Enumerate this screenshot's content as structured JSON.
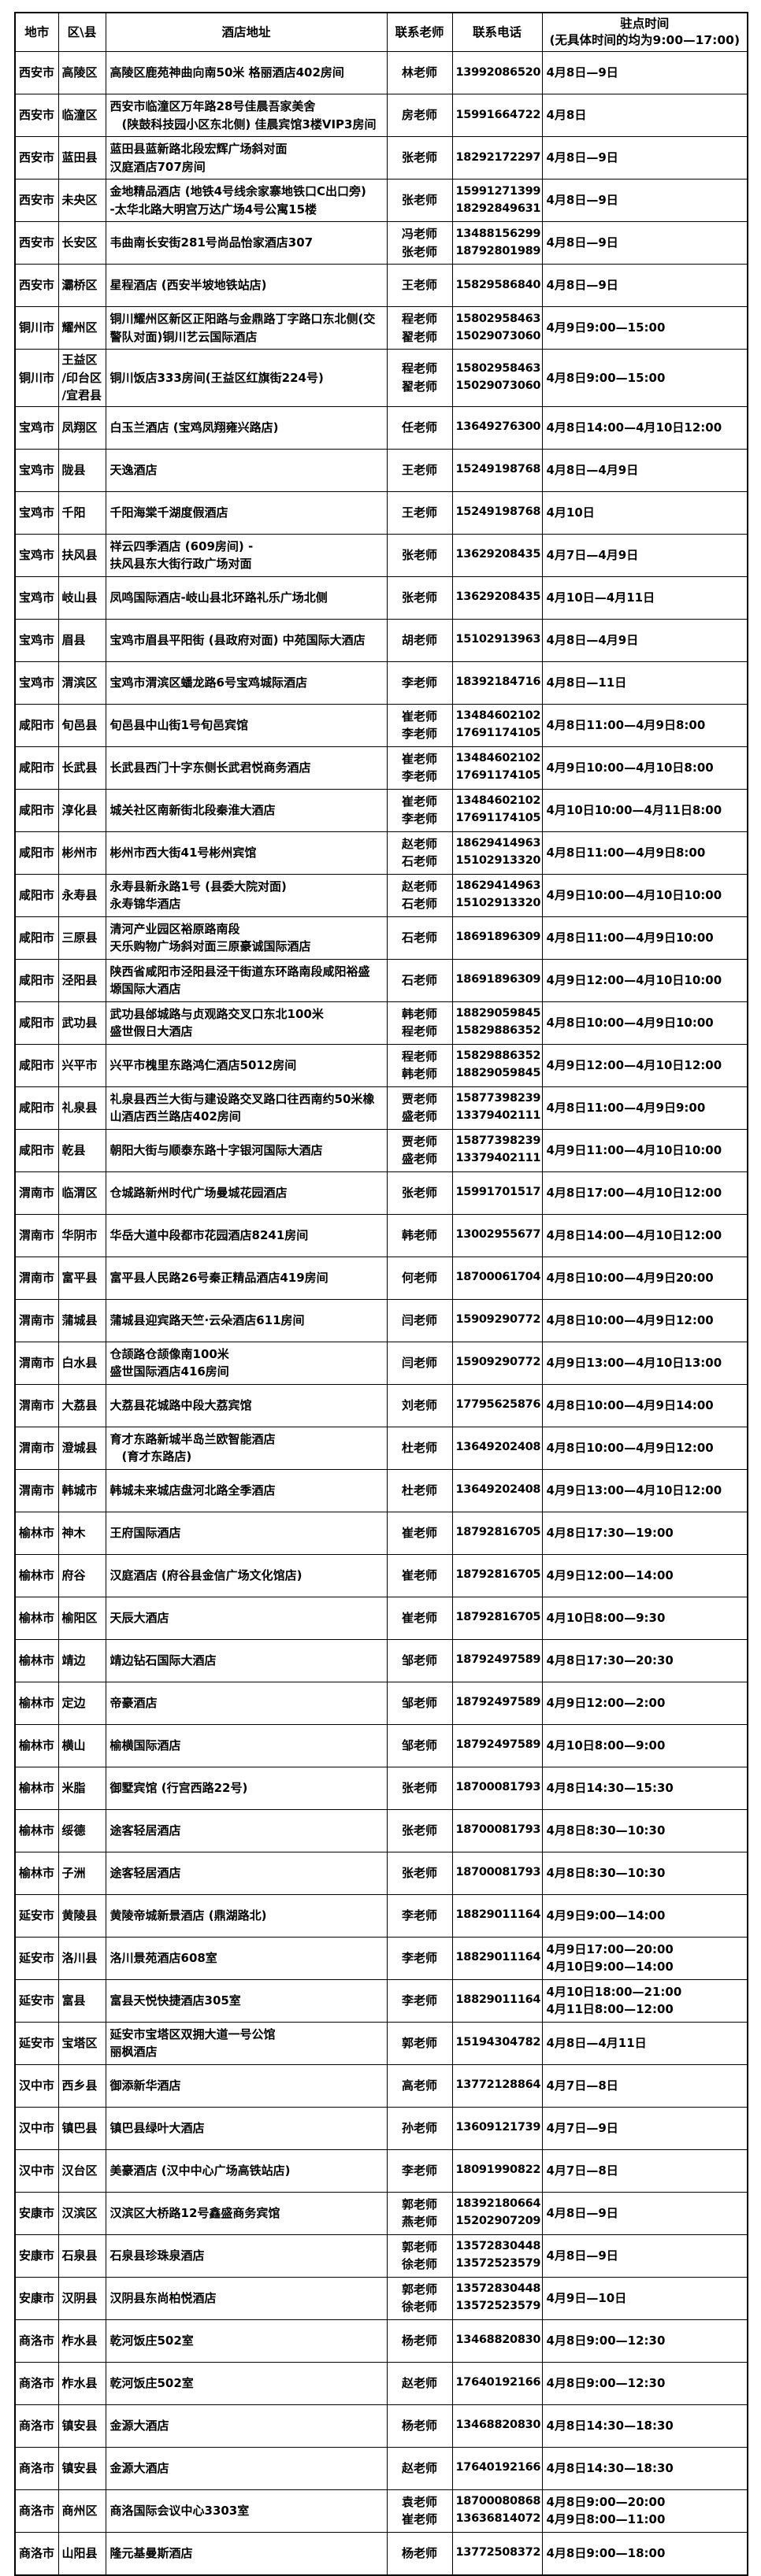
{
  "table": {
    "columns": [
      "地市",
      "区\\县",
      "酒店地址",
      "联系老师",
      "联系电话",
      [
        "驻点时间",
        "(无具体时间的均为9:00—17:00)"
      ]
    ],
    "rows": [
      {
        "city": "西安市",
        "district": "高陵区",
        "address": "高陵区鹿苑神曲向南50米 格丽酒店402房间",
        "teachers": [
          "林老师"
        ],
        "phones": [
          "13992086520"
        ],
        "times": [
          "4月8日—9日"
        ]
      },
      {
        "city": "西安市",
        "district": "临潼区",
        "address": [
          "西安市临潼区万年路28号佳晨吾家美舍",
          "　(陕鼓科技园小区东北侧) 佳晨宾馆3楼VIP3房间"
        ],
        "teachers": [
          "房老师"
        ],
        "phones": [
          "15991664722"
        ],
        "times": [
          "4月8日"
        ]
      },
      {
        "city": "西安市",
        "district": "蓝田县",
        "address": [
          "蓝田县蓝新路北段宏辉广场斜对面",
          "汉庭酒店707房间"
        ],
        "teachers": [
          "张老师"
        ],
        "phones": [
          "18292172297"
        ],
        "times": [
          "4月8日—9日"
        ]
      },
      {
        "city": "西安市",
        "district": "未央区",
        "address": [
          "金地精品酒店 (地铁4号线余家寨地铁口C出口旁)",
          "-太华北路大明宫万达广场4号公寓15楼"
        ],
        "teachers": [
          "张老师"
        ],
        "phones": [
          "15991271399",
          "18292849631"
        ],
        "times": [
          "4月8日—9日"
        ]
      },
      {
        "city": "西安市",
        "district": "长安区",
        "address": "韦曲南长安街281号尚品怡家酒店307",
        "teachers": [
          "冯老师",
          "张老师"
        ],
        "phones": [
          "13488156299",
          "18792801989"
        ],
        "times": [
          "4月8日—9日"
        ]
      },
      {
        "city": "西安市",
        "district": "灞桥区",
        "address": "星程酒店 (西安半坡地铁站店)",
        "teachers": [
          "王老师"
        ],
        "phones": [
          "15829586840"
        ],
        "times": [
          "4月8日—9日"
        ]
      },
      {
        "city": "铜川市",
        "district": "耀州区",
        "address": [
          "铜川耀州区新区正阳路与金鼎路丁字路口东北侧(交",
          "警队对面)铜川艺云国际酒店"
        ],
        "teachers": [
          "程老师",
          "翟老师"
        ],
        "phones": [
          "15802958463",
          "15029073060"
        ],
        "times": [
          "4月9日9:00—15:00"
        ]
      },
      {
        "city": "铜川市",
        "district": [
          "王益区",
          "/印台区",
          "/宜君县"
        ],
        "address": "铜川饭店333房间(王益区红旗街224号)",
        "teachers": [
          "程老师",
          "翟老师"
        ],
        "phones": [
          "15802958463",
          "15029073060"
        ],
        "times": [
          "4月8日9:00—15:00"
        ]
      },
      {
        "city": "宝鸡市",
        "district": "凤翔区",
        "address": "白玉兰酒店 (宝鸡凤翔雍兴路店)",
        "teachers": [
          "任老师"
        ],
        "phones": [
          "13649276300"
        ],
        "times": [
          "4月8日14:00—4月10日12:00"
        ]
      },
      {
        "city": "宝鸡市",
        "district": "陇县",
        "address": "天逸酒店",
        "teachers": [
          "王老师"
        ],
        "phones": [
          "15249198768"
        ],
        "times": [
          "4月8日—4月9日"
        ]
      },
      {
        "city": "宝鸡市",
        "district": "千阳",
        "address": "千阳海棠千湖度假酒店",
        "teachers": [
          "王老师"
        ],
        "phones": [
          "15249198768"
        ],
        "times": [
          "4月10日"
        ]
      },
      {
        "city": "宝鸡市",
        "district": "扶风县",
        "address": [
          "祥云四季酒店 (609房间) -",
          "扶风县东大街行政广场对面"
        ],
        "teachers": [
          "张老师"
        ],
        "phones": [
          "13629208435"
        ],
        "times": [
          "4月7日—4月9日"
        ]
      },
      {
        "city": "宝鸡市",
        "district": "岐山县",
        "address": "凤鸣国际酒店-岐山县北环路礼乐广场北侧",
        "teachers": [
          "张老师"
        ],
        "phones": [
          "13629208435"
        ],
        "times": [
          "4月10日—4月11日"
        ]
      },
      {
        "city": "宝鸡市",
        "district": "眉县",
        "address": "宝鸡市眉县平阳街 (县政府对面) 中苑国际大酒店",
        "teachers": [
          "胡老师"
        ],
        "phones": [
          "15102913963"
        ],
        "times": [
          "4月8日—4月9日"
        ]
      },
      {
        "city": "宝鸡市",
        "district": "渭滨区",
        "address": "宝鸡市渭滨区蟠龙路6号宝鸡城际酒店",
        "teachers": [
          "李老师"
        ],
        "phones": [
          "18392184716"
        ],
        "times": [
          "4月8日—11日"
        ]
      },
      {
        "city": "咸阳市",
        "district": "旬邑县",
        "address": "旬邑县中山街1号旬邑宾馆",
        "teachers": [
          "崔老师",
          "李老师"
        ],
        "phones": [
          "13484602102",
          "17691174105"
        ],
        "times": [
          "4月8日11:00—4月9日8:00"
        ]
      },
      {
        "city": "咸阳市",
        "district": "长武县",
        "address": "长武县西门十字东侧长武君悦商务酒店",
        "teachers": [
          "崔老师",
          "李老师"
        ],
        "phones": [
          "13484602102",
          "17691174105"
        ],
        "times": [
          "4月9日10:00—4月10日8:00"
        ]
      },
      {
        "city": "咸阳市",
        "district": "淳化县",
        "address": "城关社区南新街北段秦淮大酒店",
        "teachers": [
          "崔老师",
          "李老师"
        ],
        "phones": [
          "13484602102",
          "17691174105"
        ],
        "times": [
          "4月10日10:00—4月11日8:00"
        ]
      },
      {
        "city": "咸阳市",
        "district": "彬州市",
        "address": "彬州市西大街41号彬州宾馆",
        "teachers": [
          "赵老师",
          "石老师"
        ],
        "phones": [
          "18629414963",
          "15102913320"
        ],
        "times": [
          "4月8日11:00—4月9日8:00"
        ]
      },
      {
        "city": "咸阳市",
        "district": "永寿县",
        "address": [
          "永寿县新永路1号 (县委大院对面)",
          "永寿锦华酒店"
        ],
        "teachers": [
          "赵老师",
          "石老师"
        ],
        "phones": [
          "18629414963",
          "15102913320"
        ],
        "times": [
          "4月9日10:00—4月10日10:00"
        ]
      },
      {
        "city": "咸阳市",
        "district": "三原县",
        "address": [
          "清河产业园区裕原路南段",
          "天乐购物广场斜对面三原豪诚国际酒店"
        ],
        "teachers": [
          "石老师"
        ],
        "phones": [
          "18691896309"
        ],
        "times": [
          "4月8日11:00—4月9日10:00"
        ]
      },
      {
        "city": "咸阳市",
        "district": "泾阳县",
        "address": [
          "陕西省咸阳市泾阳县泾干街道东环路南段咸阳裕盛",
          "塬国际大酒店"
        ],
        "teachers": [
          "石老师"
        ],
        "phones": [
          "18691896309"
        ],
        "times": [
          "4月9日12:00—4月10日10:00"
        ]
      },
      {
        "city": "咸阳市",
        "district": "武功县",
        "address": [
          "武功县邰城路与贞观路交叉口东北100米",
          "盛世假日大酒店"
        ],
        "teachers": [
          "韩老师",
          "程老师"
        ],
        "phones": [
          "18829059845",
          "15829886352"
        ],
        "times": [
          "4月8日10:00—4月9日10:00"
        ]
      },
      {
        "city": "咸阳市",
        "district": "兴平市",
        "address": "兴平市槐里东路鸿仁酒店5012房间",
        "teachers": [
          "程老师",
          "韩老师"
        ],
        "phones": [
          "15829886352",
          "18829059845"
        ],
        "times": [
          "4月9日12:00—4月10日12:00"
        ]
      },
      {
        "city": "咸阳市",
        "district": "礼泉县",
        "address": [
          "礼泉县西兰大街与建设路交叉路口往西南约50米橡",
          "山酒店西兰路店402房间"
        ],
        "teachers": [
          "贾老师",
          "盛老师"
        ],
        "phones": [
          "15877398239",
          "13379402111"
        ],
        "times": [
          "4月8日11:00—4月9日9:00"
        ]
      },
      {
        "city": "咸阳市",
        "district": "乾县",
        "address": "朝阳大街与顺泰东路十字银河国际大酒店",
        "teachers": [
          "贾老师",
          "盛老师"
        ],
        "phones": [
          "15877398239",
          "13379402111"
        ],
        "times": [
          "4月9日11:00—4月10日10:00"
        ]
      },
      {
        "city": "渭南市",
        "district": "临渭区",
        "address": "仓城路新州时代广场曼城花园酒店",
        "teachers": [
          "张老师"
        ],
        "phones": [
          "15991701517"
        ],
        "times": [
          "4月8日17:00—4月10日12:00"
        ]
      },
      {
        "city": "渭南市",
        "district": "华阴市",
        "address": "华岳大道中段都市花园酒店8241房间",
        "teachers": [
          "韩老师"
        ],
        "phones": [
          "13002955677"
        ],
        "times": [
          "4月8日14:00—4月10日12:00"
        ]
      },
      {
        "city": "渭南市",
        "district": "富平县",
        "address": "富平县人民路26号秦正精品酒店419房间",
        "teachers": [
          "何老师"
        ],
        "phones": [
          "18700061704"
        ],
        "times": [
          "4月8日10:00—4月9日20:00"
        ]
      },
      {
        "city": "渭南市",
        "district": "蒲城县",
        "address": "蒲城县迎宾路天竺·云朵酒店611房间",
        "teachers": [
          "闫老师"
        ],
        "phones": [
          "15909290772"
        ],
        "times": [
          "4月8日10:00—4月9日12:00"
        ]
      },
      {
        "city": "渭南市",
        "district": "白水县",
        "address": [
          "仓颉路仓颉像南100米",
          "盛世国际酒店416房间"
        ],
        "teachers": [
          "闫老师"
        ],
        "phones": [
          "15909290772"
        ],
        "times": [
          "4月9日13:00—4月10日13:00"
        ]
      },
      {
        "city": "渭南市",
        "district": "大荔县",
        "address": "大荔县花城路中段大荔宾馆",
        "teachers": [
          "刘老师"
        ],
        "phones": [
          "17795625876"
        ],
        "times": [
          "4月8日10:00—4月9日14:00"
        ]
      },
      {
        "city": "渭南市",
        "district": "澄城县",
        "address": [
          "育才东路新城半岛兰欧智能酒店",
          "　(育才东路店)"
        ],
        "teachers": [
          "杜老师"
        ],
        "phones": [
          "13649202408"
        ],
        "times": [
          "4月8日10:00—4月9日12:00"
        ]
      },
      {
        "city": "渭南市",
        "district": "韩城市",
        "address": "韩城未来城店盘河北路全季酒店",
        "teachers": [
          "杜老师"
        ],
        "phones": [
          "13649202408"
        ],
        "times": [
          "4月9日13:00—4月10日12:00"
        ]
      },
      {
        "city": "榆林市",
        "district": "神木",
        "address": "王府国际酒店",
        "teachers": [
          "崔老师"
        ],
        "phones": [
          "18792816705"
        ],
        "times": [
          "4月8日17:30—19:00"
        ]
      },
      {
        "city": "榆林市",
        "district": "府谷",
        "address": "汉庭酒店 (府谷县金信广场文化馆店)",
        "teachers": [
          "崔老师"
        ],
        "phones": [
          "18792816705"
        ],
        "times": [
          "4月9日12:00—14:00"
        ]
      },
      {
        "city": "榆林市",
        "district": "榆阳区",
        "address": "天辰大酒店",
        "teachers": [
          "崔老师"
        ],
        "phones": [
          "18792816705"
        ],
        "times": [
          "4月10日8:00—9:30"
        ]
      },
      {
        "city": "榆林市",
        "district": "靖边",
        "address": "靖边钻石国际大酒店",
        "teachers": [
          "邹老师"
        ],
        "phones": [
          "18792497589"
        ],
        "times": [
          "4月8日17:30—20:30"
        ]
      },
      {
        "city": "榆林市",
        "district": "定边",
        "address": "帝豪酒店",
        "teachers": [
          "邹老师"
        ],
        "phones": [
          "18792497589"
        ],
        "times": [
          "4月9日12:00—2:00"
        ]
      },
      {
        "city": "榆林市",
        "district": "横山",
        "address": "榆横国际酒店",
        "teachers": [
          "邹老师"
        ],
        "phones": [
          "18792497589"
        ],
        "times": [
          "4月10日8:00—9:00"
        ]
      },
      {
        "city": "榆林市",
        "district": "米脂",
        "address": "御墅宾馆 (行宫西路22号)",
        "teachers": [
          "张老师"
        ],
        "phones": [
          "18700081793"
        ],
        "times": [
          "4月8日14:30—15:30"
        ]
      },
      {
        "city": "榆林市",
        "district": "绥德",
        "address": "途客轻居酒店",
        "teachers": [
          "张老师"
        ],
        "phones": [
          "18700081793"
        ],
        "times": [
          "4月8日8:30—10:30"
        ]
      },
      {
        "city": "榆林市",
        "district": "子洲",
        "address": "途客轻居酒店",
        "teachers": [
          "张老师"
        ],
        "phones": [
          "18700081793"
        ],
        "times": [
          "4月8日8:30—10:30"
        ]
      },
      {
        "city": "延安市",
        "district": "黄陵县",
        "address": "黄陵帝城新景酒店 (鼎湖路北)",
        "teachers": [
          "李老师"
        ],
        "phones": [
          "18829011164"
        ],
        "times": [
          "4月9日9:00—14:00"
        ]
      },
      {
        "city": "延安市",
        "district": "洛川县",
        "address": "洛川景苑酒店608室",
        "teachers": [
          "李老师"
        ],
        "phones": [
          "18829011164"
        ],
        "times": [
          "4月9日17:00—20:00",
          "4月10日9:00—14:00"
        ]
      },
      {
        "city": "延安市",
        "district": "富县",
        "address": "富县天悦快捷酒店305室",
        "teachers": [
          "李老师"
        ],
        "phones": [
          "18829011164"
        ],
        "times": [
          "4月10日18:00—21:00",
          "4月11日8:00—12:00"
        ]
      },
      {
        "city": "延安市",
        "district": "宝塔区",
        "address": [
          "延安市宝塔区双拥大道一号公馆",
          "丽枫酒店"
        ],
        "teachers": [
          "郭老师"
        ],
        "phones": [
          "15194304782"
        ],
        "times": [
          "4月8日—4月11日"
        ]
      },
      {
        "city": "汉中市",
        "district": "西乡县",
        "address": "御添新华酒店",
        "teachers": [
          "高老师"
        ],
        "phones": [
          "13772128864"
        ],
        "times": [
          "4月7日—8日"
        ]
      },
      {
        "city": "汉中市",
        "district": "镇巴县",
        "address": "镇巴县绿叶大酒店",
        "teachers": [
          "孙老师"
        ],
        "phones": [
          "13609121739"
        ],
        "times": [
          "4月7日—9日"
        ]
      },
      {
        "city": "汉中市",
        "district": "汉台区",
        "address": "美豪酒店 (汉中中心广场高铁站店)",
        "teachers": [
          "李老师"
        ],
        "phones": [
          "18091990822"
        ],
        "times": [
          "4月7日—8日"
        ]
      },
      {
        "city": "安康市",
        "district": "汉滨区",
        "address": "汉滨区大桥路12号鑫盛商务宾馆",
        "teachers": [
          "郭老师",
          "燕老师"
        ],
        "phones": [
          "18392180664",
          "15202907209"
        ],
        "times": [
          "4月8日—9日"
        ]
      },
      {
        "city": "安康市",
        "district": "石泉县",
        "address": "石泉县珍珠泉酒店",
        "teachers": [
          "郭老师",
          "徐老师"
        ],
        "phones": [
          "13572830448",
          "13572523579"
        ],
        "times": [
          "4月8日—9日"
        ]
      },
      {
        "city": "安康市",
        "district": "汉阴县",
        "address": "汉阴县东尚柏悦酒店",
        "teachers": [
          "郭老师",
          "徐老师"
        ],
        "phones": [
          "13572830448",
          "13572523579"
        ],
        "times": [
          "4月9日—10日"
        ]
      },
      {
        "city": "商洛市",
        "district": "柞水县",
        "address": "乾河饭庄502室",
        "teachers": [
          "杨老师"
        ],
        "phones": [
          "13468820830"
        ],
        "times": [
          "4月8日9:00—12:30"
        ]
      },
      {
        "city": "商洛市",
        "district": "柞水县",
        "address": "乾河饭庄502室",
        "teachers": [
          "赵老师"
        ],
        "phones": [
          "17640192166"
        ],
        "times": [
          "4月8日9:00—12:30"
        ]
      },
      {
        "city": "商洛市",
        "district": "镇安县",
        "address": "金源大酒店",
        "teachers": [
          "杨老师"
        ],
        "phones": [
          "13468820830"
        ],
        "times": [
          "4月8日14:30—18:30"
        ]
      },
      {
        "city": "商洛市",
        "district": "镇安县",
        "address": "金源大酒店",
        "teachers": [
          "赵老师"
        ],
        "phones": [
          "17640192166"
        ],
        "times": [
          "4月8日14:30—18:30"
        ]
      },
      {
        "city": "商洛市",
        "district": "商州区",
        "address": "商洛国际会议中心3303室",
        "teachers": [
          "袁老师",
          "崔老师"
        ],
        "phones": [
          "18700080868",
          "13636814072"
        ],
        "times": [
          "4月8日9:00—20:00",
          "4月9日8:00—11:00"
        ]
      },
      {
        "city": "商洛市",
        "district": "山阳县",
        "address": "隆元基曼斯酒店",
        "teachers": [
          "杨老师"
        ],
        "phones": [
          "13772508372"
        ],
        "times": [
          "4月8日9:00—18:00"
        ]
      }
    ]
  }
}
